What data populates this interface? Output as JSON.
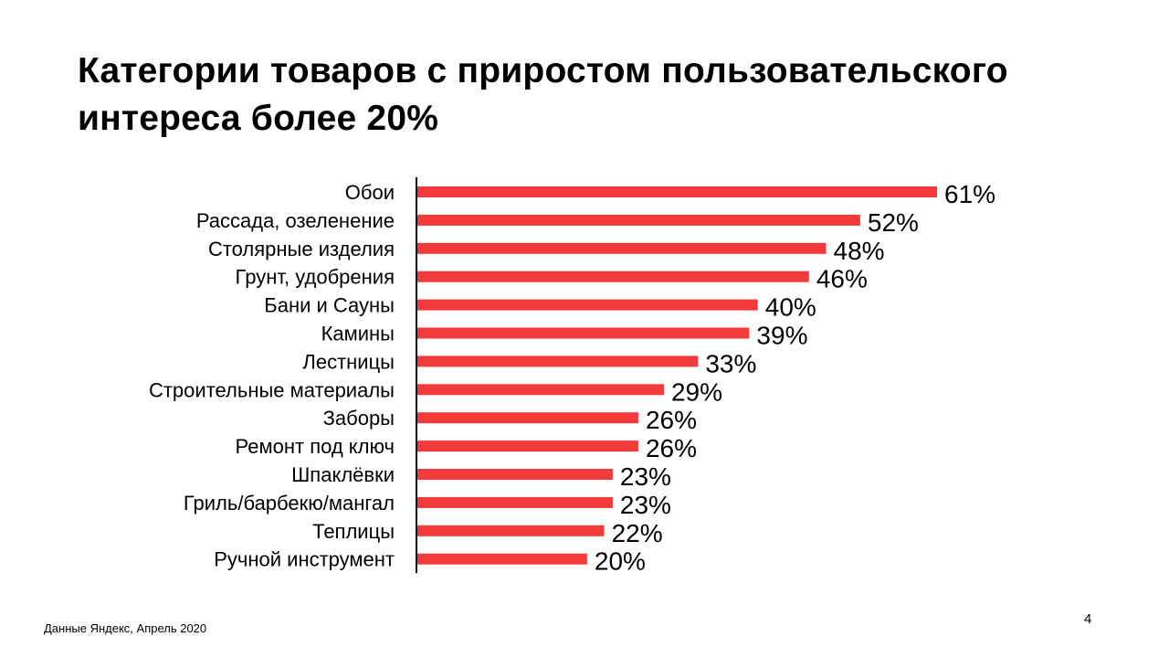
{
  "slide": {
    "title_line1": "Категории товаров с приростом пользовательского",
    "title_line2": "интереса более 20%",
    "footnote": "Данные Яндекс, Апрель 2020",
    "page_number": "4"
  },
  "chart_data": {
    "type": "bar",
    "orientation": "horizontal",
    "title": "Категории товаров с приростом пользовательского интереса более 20%",
    "categories": [
      "Обои",
      "Рассада, озеленение",
      "Столярные изделия",
      "Грунт, удобрения",
      "Бани и Сауны",
      "Камины",
      "Лестницы",
      "Строительные материалы",
      "Заборы",
      "Ремонт под ключ",
      "Шпаклёвки",
      "Гриль/барбекю/мангал",
      "Теплицы",
      "Ручной инструмент"
    ],
    "values": [
      61,
      52,
      48,
      46,
      40,
      39,
      33,
      29,
      26,
      26,
      23,
      23,
      22,
      20
    ],
    "value_labels": [
      "61%",
      "52%",
      "48%",
      "46%",
      "40%",
      "39%",
      "33%",
      "29%",
      "26%",
      "26%",
      "23%",
      "23%",
      "22%",
      "20%"
    ],
    "unit": "%",
    "xlim": [
      0,
      61
    ],
    "grid": false,
    "legend": "none",
    "bar_color": "#f53a3b",
    "axis_color": "#000000"
  }
}
